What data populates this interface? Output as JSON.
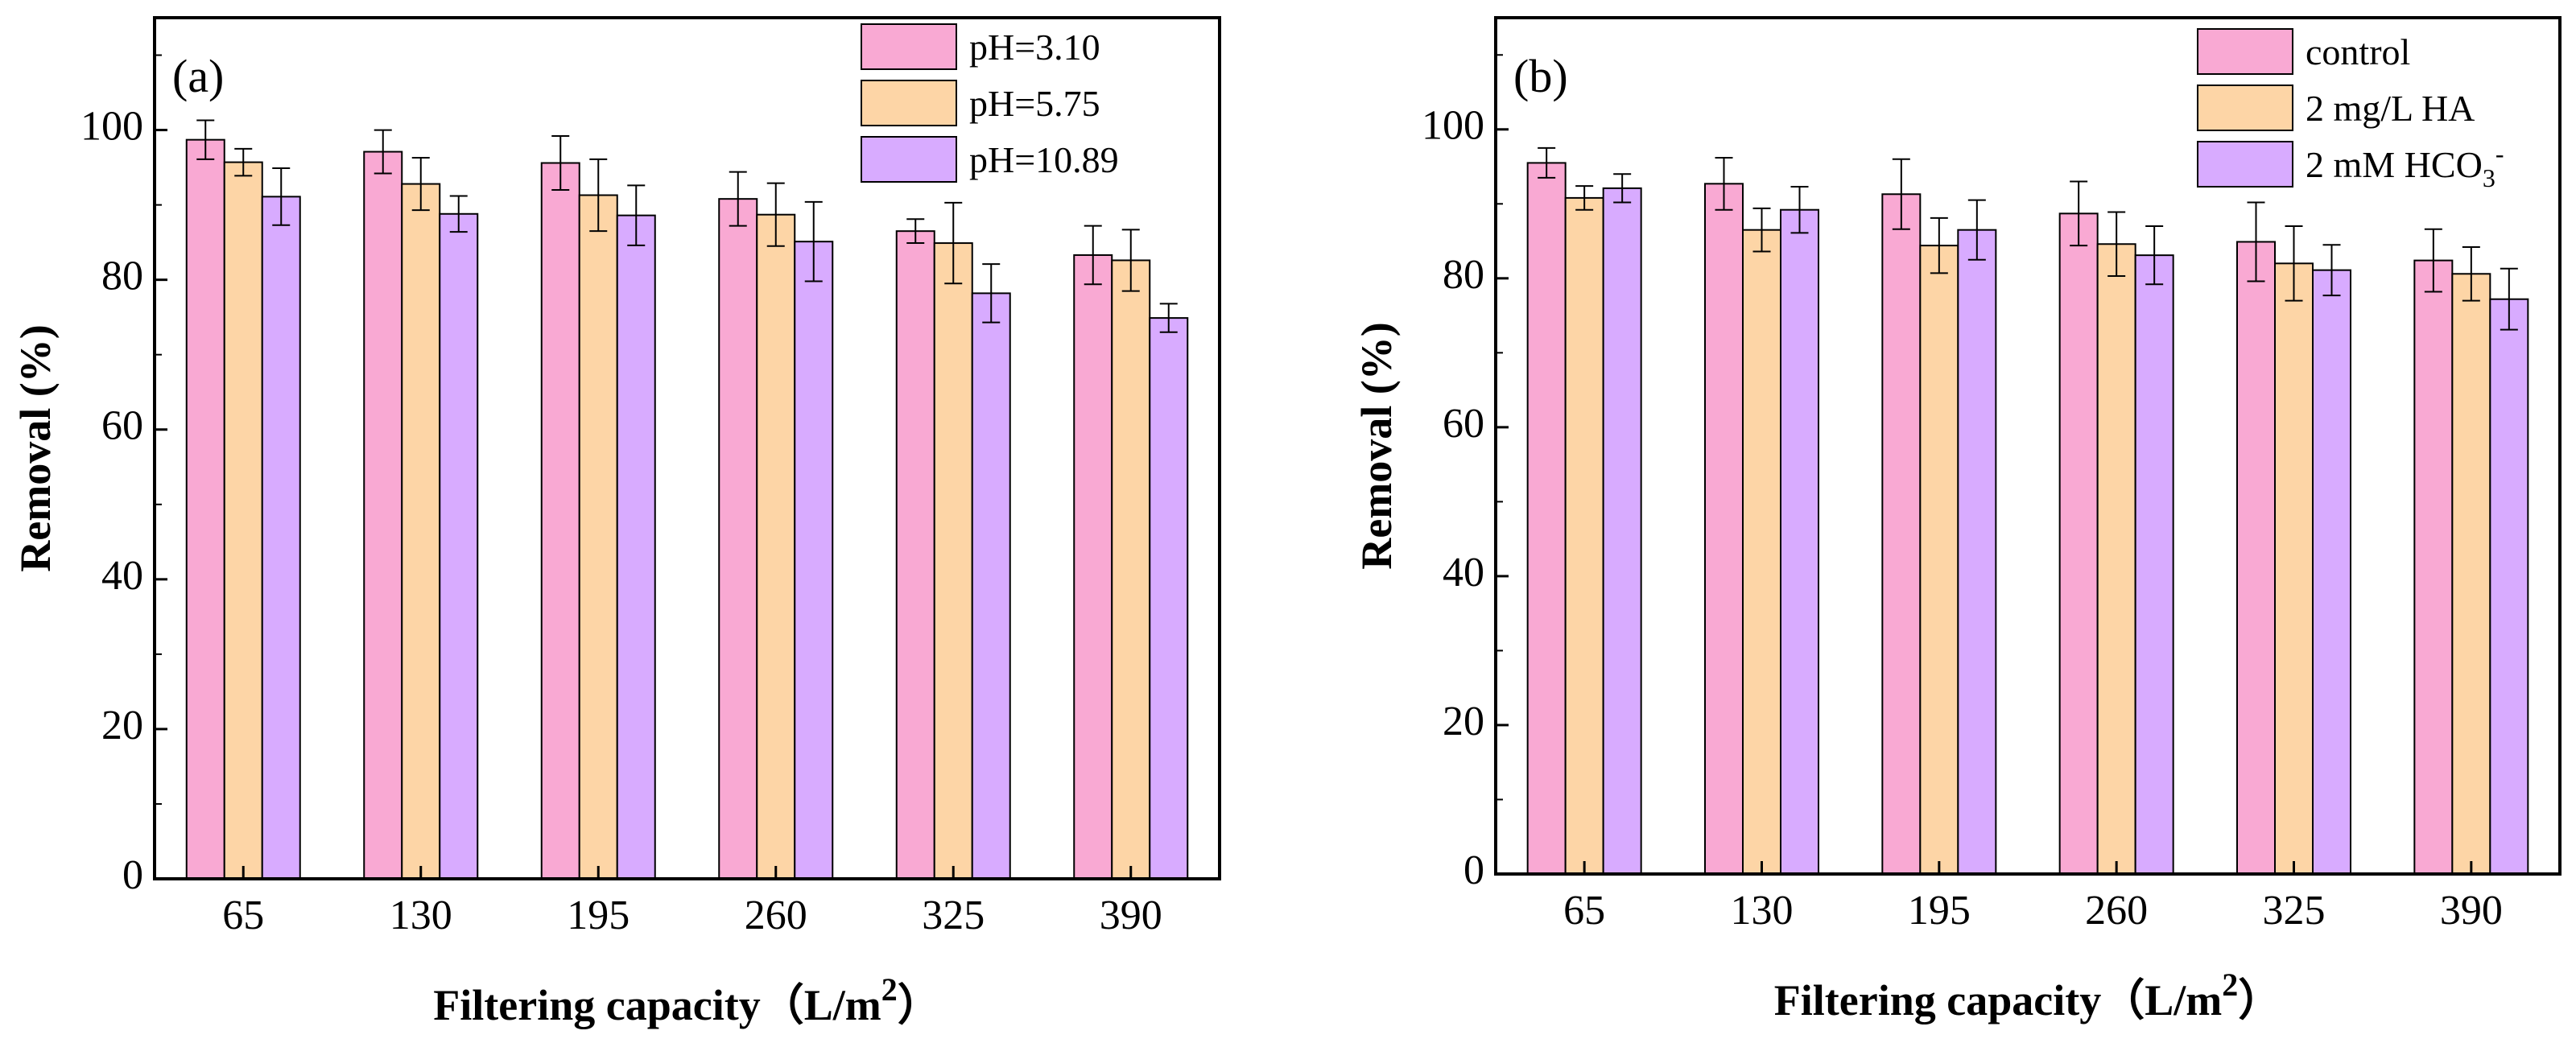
{
  "chart_data": [
    {
      "type": "bar",
      "panel_label": "(a)",
      "title": "",
      "xlabel": "Filtering capacity（L/m",
      "xlabel_sup": "2",
      "xlabel_end": "）",
      "ylabel": "Removal (%)",
      "ylim": [
        0,
        115
      ],
      "yticks": [
        "0",
        "20",
        "40",
        "60",
        "80",
        "100"
      ],
      "categories": [
        "65",
        "130",
        "195",
        "260",
        "325",
        "390"
      ],
      "legend_position": "top-right",
      "series": [
        {
          "name": "pH=3.10",
          "name_main": "pH=3.10",
          "name_sub": "",
          "name_sup": "",
          "color": "#f9a9d3",
          "values": [
            98.7,
            97.1,
            95.6,
            90.8,
            86.5,
            83.3
          ],
          "errors": [
            2.6,
            2.9,
            3.6,
            3.6,
            1.6,
            3.9
          ]
        },
        {
          "name": "pH=5.75",
          "name_main": "pH=5.75",
          "name_sub": "",
          "name_sup": "",
          "color": "#fdd5a6",
          "values": [
            95.7,
            92.8,
            91.3,
            88.7,
            84.9,
            82.6
          ],
          "errors": [
            1.8,
            3.5,
            4.8,
            4.2,
            5.4,
            4.1
          ]
        },
        {
          "name": "pH=10.89",
          "name_main": "pH=10.89",
          "name_sub": "",
          "name_sup": "",
          "color": "#d8abff",
          "values": [
            91.1,
            88.8,
            88.6,
            85.1,
            78.2,
            74.9
          ],
          "errors": [
            3.8,
            2.4,
            4.0,
            5.3,
            3.9,
            1.9
          ]
        }
      ]
    },
    {
      "type": "bar",
      "panel_label": "(b)",
      "title": "",
      "xlabel": "Filtering capacity（L/m",
      "xlabel_sup": "2",
      "xlabel_end": "）",
      "ylabel": "Removal (%)",
      "ylim": [
        0,
        115
      ],
      "yticks": [
        "0",
        "20",
        "40",
        "60",
        "80",
        "100"
      ],
      "categories": [
        "65",
        "130",
        "195",
        "260",
        "325",
        "390"
      ],
      "legend_position": "top-right",
      "series": [
        {
          "name": "control",
          "name_main": "control",
          "name_sub": "",
          "name_sup": "",
          "color": "#f9a9d3",
          "values": [
            95.5,
            92.7,
            91.3,
            88.7,
            84.9,
            82.4
          ],
          "errors": [
            2.0,
            3.5,
            4.7,
            4.3,
            5.3,
            4.2
          ]
        },
        {
          "name": "2 mg/L HA",
          "name_main": "2 mg/L HA",
          "name_sub": "",
          "name_sup": "",
          "color": "#fdd5a6",
          "values": [
            90.8,
            86.5,
            84.4,
            84.6,
            82.0,
            80.6
          ],
          "errors": [
            1.6,
            2.9,
            3.7,
            4.3,
            5.0,
            3.6
          ]
        },
        {
          "name": "2 mM HCO3-",
          "name_main": "2 mM HCO",
          "name_sub": "3",
          "name_sup": "-",
          "color": "#d8abff",
          "values": [
            92.1,
            89.2,
            86.5,
            83.1,
            81.1,
            77.2
          ],
          "errors": [
            1.9,
            3.1,
            4.0,
            3.9,
            3.4,
            4.1
          ]
        }
      ]
    }
  ]
}
